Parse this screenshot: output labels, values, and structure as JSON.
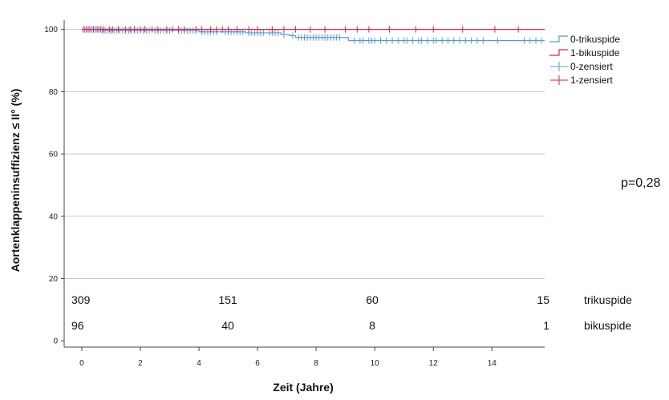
{
  "chart_data": {
    "type": "line",
    "title": "",
    "xlabel": "Zeit (Jahre)",
    "ylabel": "Aortenklappeninsuffizienz ≤ II° (%)",
    "xlim": [
      -0.6,
      15.8
    ],
    "ylim": [
      -2,
      103
    ],
    "xticks": [
      0,
      2,
      4,
      6,
      8,
      10,
      12,
      14
    ],
    "yticks": [
      0,
      20,
      40,
      60,
      80,
      100
    ],
    "grid": "horizontal",
    "legend_position": "right",
    "legend": [
      "0-trikuspide",
      "1-bikuspide",
      "0-zensiert",
      "1-zensiert"
    ],
    "annotation": "p=0,28",
    "colors": {
      "trikuspide": "#5b9bd5",
      "bikuspide": "#d9214a"
    },
    "series": [
      {
        "name": "0-trikuspide",
        "color": "#5b9bd5",
        "x": [
          0,
          0.7,
          3.2,
          4.0,
          4.8,
          5.6,
          6.3,
          6.8,
          7.1,
          7.3,
          9.1,
          15.8
        ],
        "y": [
          100,
          99.6,
          99.6,
          99.2,
          99.2,
          98.9,
          98.9,
          98.3,
          98.0,
          97.4,
          96.4,
          96.4
        ],
        "censored": [
          0.1,
          0.2,
          0.3,
          0.35,
          0.45,
          0.5,
          0.6,
          0.7,
          0.8,
          0.9,
          1.0,
          1.1,
          1.2,
          1.3,
          1.4,
          1.5,
          1.6,
          1.7,
          1.8,
          1.9,
          2.0,
          2.1,
          2.2,
          2.3,
          2.5,
          2.6,
          2.7,
          2.8,
          2.9,
          3.0,
          3.3,
          3.4,
          3.5,
          3.6,
          3.7,
          3.8,
          3.9,
          4.1,
          4.2,
          4.3,
          4.4,
          4.5,
          4.6,
          4.9,
          5.0,
          5.1,
          5.2,
          5.3,
          5.4,
          5.5,
          5.7,
          5.8,
          5.9,
          6.0,
          6.1,
          6.2,
          6.4,
          6.5,
          6.6,
          6.7,
          6.9,
          7.2,
          7.4,
          7.5,
          7.6,
          7.7,
          7.8,
          7.9,
          8.0,
          8.1,
          8.2,
          8.3,
          8.4,
          8.5,
          8.6,
          8.7,
          8.8,
          9.3,
          9.5,
          9.6,
          9.8,
          9.9,
          10.0,
          10.2,
          10.4,
          10.6,
          10.8,
          11.0,
          11.1,
          11.3,
          11.5,
          11.6,
          11.8,
          12.0,
          12.1,
          12.3,
          12.5,
          12.7,
          12.9,
          13.1,
          13.3,
          13.5,
          13.7,
          14.2,
          15.1,
          15.3,
          15.5,
          15.7
        ]
      },
      {
        "name": "1-bikuspide",
        "color": "#d9214a",
        "x": [
          0,
          15.8
        ],
        "y": [
          100,
          100
        ],
        "censored": [
          0.05,
          0.15,
          0.25,
          0.4,
          0.55,
          0.65,
          0.75,
          0.95,
          1.05,
          1.25,
          1.5,
          1.65,
          1.8,
          2.0,
          2.15,
          2.4,
          2.6,
          2.9,
          3.1,
          3.3,
          3.5,
          3.9,
          4.1,
          4.4,
          4.6,
          4.8,
          5.0,
          5.3,
          5.7,
          6.0,
          6.5,
          6.9,
          7.3,
          7.8,
          8.3,
          9.0,
          9.4,
          9.8,
          10.5,
          11.4,
          12.0,
          13.0,
          14.1,
          14.9
        ]
      }
    ],
    "risk_table": {
      "times": [
        0,
        5,
        10,
        15
      ],
      "rows": [
        {
          "label": "trikuspide",
          "values": [
            309,
            151,
            60,
            15
          ]
        },
        {
          "label": "bikuspide",
          "values": [
            96,
            40,
            8,
            1
          ]
        }
      ]
    }
  }
}
